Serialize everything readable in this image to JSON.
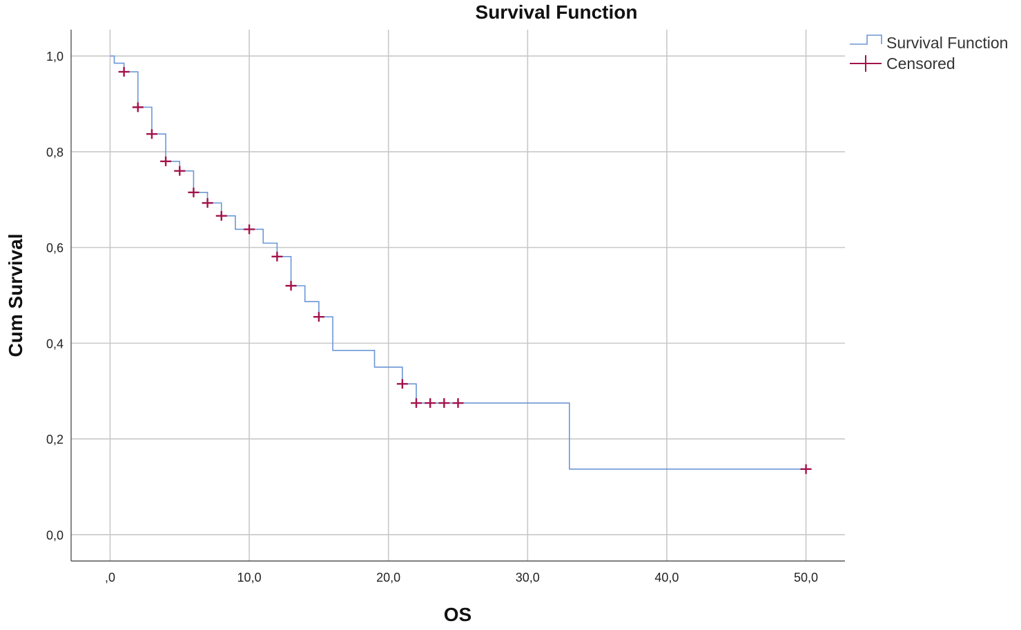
{
  "chart_data": {
    "type": "line",
    "title": "Survival Function",
    "xlabel": "OS",
    "ylabel": "Cum Survival",
    "xlim": [
      -2.8,
      52.8
    ],
    "ylim": [
      -0.055,
      1.055
    ],
    "x_ticks": [
      0,
      10,
      20,
      30,
      40,
      50
    ],
    "x_tick_labels": [
      ",0",
      "10,0",
      "20,0",
      "30,0",
      "40,0",
      "50,0"
    ],
    "y_ticks": [
      0,
      0.2,
      0.4,
      0.6,
      0.8,
      1.0
    ],
    "y_tick_labels": [
      "0,0",
      "0,2",
      "0,4",
      "0,6",
      "0,8",
      "1,0"
    ],
    "grid": true,
    "legend_position": "top-right",
    "legend": [
      "Survival Function",
      "Censored"
    ],
    "colors": {
      "survival": "#6b96d6",
      "censored": "#a3124a",
      "grid": "#c8c8c8",
      "axis": "#555555"
    },
    "series": [
      {
        "name": "Survival Function",
        "step": true,
        "x": [
          0,
          0.3,
          1,
          2,
          3,
          4,
          5,
          6,
          7,
          8,
          9,
          11,
          12,
          13,
          14,
          15,
          16,
          19,
          21,
          22,
          33,
          50
        ],
        "y": [
          1.0,
          0.985,
          0.967,
          0.893,
          0.837,
          0.78,
          0.76,
          0.715,
          0.693,
          0.666,
          0.638,
          0.609,
          0.581,
          0.52,
          0.487,
          0.455,
          0.385,
          0.35,
          0.315,
          0.275,
          0.137,
          0.137
        ]
      },
      {
        "name": "Censored",
        "x": [
          1,
          2,
          3,
          4,
          5,
          6,
          7,
          8,
          10,
          12,
          13,
          15,
          21,
          22,
          23,
          24,
          25,
          50
        ],
        "y": [
          0.967,
          0.893,
          0.837,
          0.78,
          0.76,
          0.715,
          0.693,
          0.666,
          0.638,
          0.581,
          0.52,
          0.455,
          0.315,
          0.275,
          0.275,
          0.275,
          0.275,
          0.137
        ]
      }
    ]
  }
}
